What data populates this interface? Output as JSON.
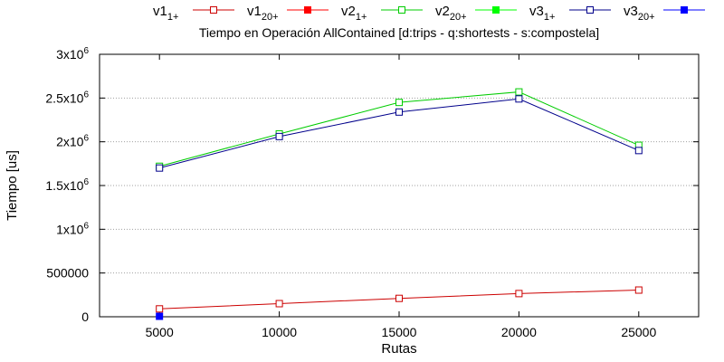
{
  "chart_data": {
    "type": "line",
    "title": "Tiempo en Operación AllContained [d:trips - q:shortests - s:compostela]",
    "xlabel": "Rutas",
    "ylabel": "Tiempo [us]",
    "x": [
      5000,
      10000,
      15000,
      20000,
      25000
    ],
    "xlim": [
      2500,
      27500
    ],
    "ylim": [
      0,
      3000000
    ],
    "x_ticks": [
      "5000",
      "10000",
      "15000",
      "20000",
      "25000"
    ],
    "y_ticks": [
      {
        "value": 0,
        "base": "0",
        "exp": ""
      },
      {
        "value": 500000,
        "base": "500000",
        "exp": ""
      },
      {
        "value": 1000000,
        "base": "1x10",
        "exp": "6"
      },
      {
        "value": 1500000,
        "base": "1.5x10",
        "exp": "6"
      },
      {
        "value": 2000000,
        "base": "2x10",
        "exp": "6"
      },
      {
        "value": 2500000,
        "base": "2.5x10",
        "exp": "6"
      },
      {
        "value": 3000000,
        "base": "3x10",
        "exp": "6"
      }
    ],
    "grid": true,
    "legend_position": "top",
    "series": [
      {
        "name": "v1",
        "sub": "1+",
        "color": "#cc0000",
        "marker": "open-square",
        "values": [
          90000,
          150000,
          210000,
          265000,
          305000
        ]
      },
      {
        "name": "v1",
        "sub": "20+",
        "color": "#ff0000",
        "marker": "filled-square",
        "values": [
          null,
          null,
          null,
          null,
          null
        ]
      },
      {
        "name": "v2",
        "sub": "1+",
        "color": "#00cc00",
        "marker": "open-square",
        "values": [
          1720000,
          2090000,
          2450000,
          2570000,
          1960000
        ]
      },
      {
        "name": "v2",
        "sub": "20+",
        "color": "#00ff00",
        "marker": "filled-square",
        "values": [
          null,
          null,
          null,
          null,
          null
        ]
      },
      {
        "name": "v3",
        "sub": "1+",
        "color": "#00008b",
        "marker": "open-square",
        "values": [
          1700000,
          2060000,
          2340000,
          2490000,
          1900000
        ]
      },
      {
        "name": "v3",
        "sub": "20+",
        "color": "#0000ff",
        "marker": "filled-square",
        "values": [
          5000,
          null,
          null,
          null,
          null
        ]
      }
    ]
  }
}
